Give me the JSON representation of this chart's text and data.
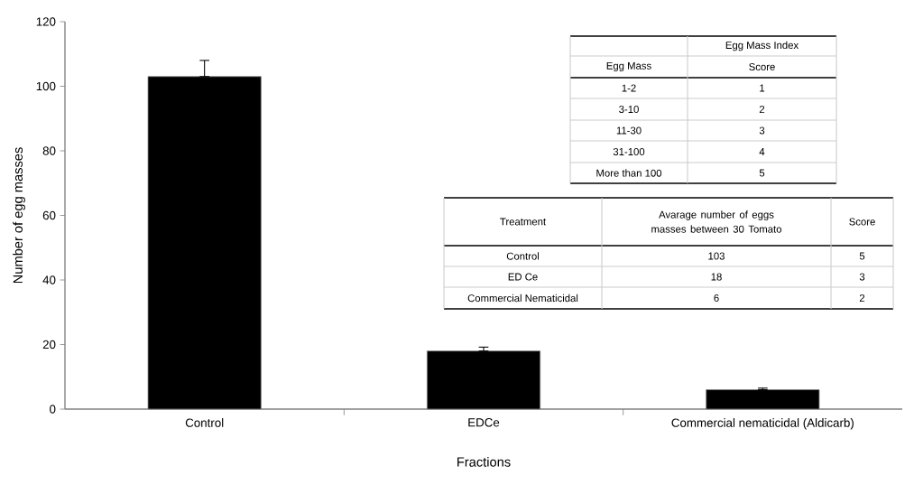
{
  "chart_data": {
    "type": "bar",
    "xlabel": "Fractions",
    "ylabel": "Number of egg masses",
    "categories": [
      "Control",
      "EDCe",
      "Commercial nematicidal (Aldicarb)"
    ],
    "values": [
      103,
      18,
      6
    ],
    "errors": [
      [
        103,
        108
      ],
      [
        18,
        19.2
      ],
      [
        6,
        6.5
      ]
    ],
    "color": "#000000",
    "ylim": [
      0,
      120
    ],
    "yticks": [
      0,
      20,
      40,
      60,
      80,
      100,
      120
    ],
    "grid": false,
    "annotations": [
      "Egg Mass Index",
      "Egg Mass",
      "Score",
      "1-2",
      "1",
      "3-10",
      "2",
      "11-30",
      "3",
      "31-100",
      "4",
      "More than 100",
      "5",
      "Treatment",
      "Avarage number of eggs masses between 30 Tomato",
      "Score",
      "Control",
      "103",
      "5",
      "ED Ce",
      "18",
      "3",
      "Commercial Nematicidal",
      "6",
      "2"
    ]
  }
}
